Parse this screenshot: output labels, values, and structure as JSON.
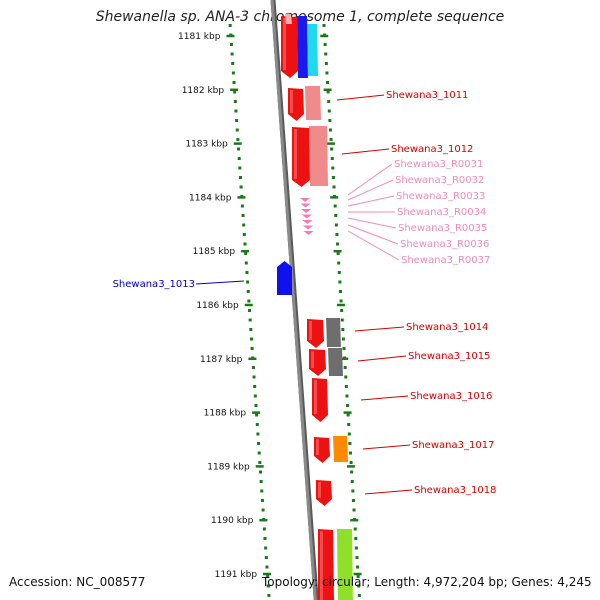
{
  "title": "Shewanella sp. ANA-3 chromosome 1, complete sequence",
  "accession": "Accession: NC_008577",
  "topology": "Topology: circular; Length: 4,972,204 bp; Genes: 4,245",
  "colors": {
    "backbone": "#8a8a8a",
    "tick": "#1a7a1a",
    "gene_red": "#ee1111",
    "gene_blue": "#1111ee",
    "label_red": "#d40000",
    "label_blue": "#0000c0",
    "label_pink": "#f08cb4"
  },
  "ticks": [
    "1181 kbp",
    "1182 kbp",
    "1183 kbp",
    "1184 kbp",
    "1185 kbp",
    "1186 kbp",
    "1187 kbp",
    "1188 kbp",
    "1189 kbp",
    "1190 kbp",
    "1191 kbp"
  ],
  "labels": [
    {
      "text": "Shewana3_1011",
      "color": "#d40000"
    },
    {
      "text": "Shewana3_1012",
      "color": "#d40000"
    },
    {
      "text": "Shewana3_R0031",
      "color": "#f08cb4"
    },
    {
      "text": "Shewana3_R0032",
      "color": "#f08cb4"
    },
    {
      "text": "Shewana3_R0033",
      "color": "#f08cb4"
    },
    {
      "text": "Shewana3_R0034",
      "color": "#f08cb4"
    },
    {
      "text": "Shewana3_R0035",
      "color": "#f08cb4"
    },
    {
      "text": "Shewana3_R0036",
      "color": "#f08cb4"
    },
    {
      "text": "Shewana3_R0037",
      "color": "#f08cb4"
    },
    {
      "text": "Shewana3_1013",
      "color": "#0000c0"
    },
    {
      "text": "Shewana3_1014",
      "color": "#d40000"
    },
    {
      "text": "Shewana3_1015",
      "color": "#d40000"
    },
    {
      "text": "Shewana3_1016",
      "color": "#d40000"
    },
    {
      "text": "Shewana3_1017",
      "color": "#d40000"
    },
    {
      "text": "Shewana3_1018",
      "color": "#d40000"
    }
  ]
}
